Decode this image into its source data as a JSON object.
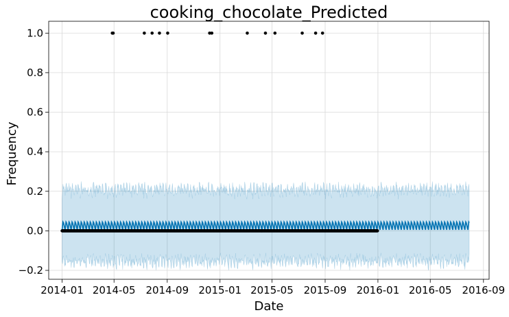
{
  "chart_data": {
    "type": "line",
    "title": "cooking_chocolate_Predicted",
    "xlabel": "Date",
    "ylabel": "Frequency",
    "x_tick_labels": [
      "2014-01",
      "2014-05",
      "2014-09",
      "2015-01",
      "2015-05",
      "2015-09",
      "2016-01",
      "2016-05",
      "2016-09"
    ],
    "y_tick_labels": [
      "−0.2",
      "0.0",
      "0.2",
      "0.4",
      "0.6",
      "0.8",
      "1.0"
    ],
    "xlim": [
      "2013-12-01",
      "2016-09-14"
    ],
    "ylim": [
      -0.245,
      1.06
    ],
    "grid": true,
    "colors": {
      "forecast_line": "#0072B2",
      "uncertainty_band": "#0072B2",
      "observed_points": "#000000",
      "grid": "#d9d9d9"
    },
    "forecast": {
      "start": "2014-01-01",
      "end": "2016-07-30",
      "mean": 0.02,
      "weekly_low": 0.005,
      "weekly_high": 0.045,
      "upper_interval": 0.2,
      "lower_interval": -0.16
    },
    "observed_zero_range": {
      "start": "2014-01-01",
      "end": "2015-12-31",
      "value": 0.0
    },
    "observed_spikes": [
      {
        "date": "2014-04-27",
        "value": 1.0
      },
      {
        "date": "2014-04-29",
        "value": 1.0
      },
      {
        "date": "2014-07-10",
        "value": 1.0
      },
      {
        "date": "2014-07-28",
        "value": 1.0
      },
      {
        "date": "2014-08-14",
        "value": 1.0
      },
      {
        "date": "2014-09-02",
        "value": 1.0
      },
      {
        "date": "2014-12-08",
        "value": 1.0
      },
      {
        "date": "2014-12-13",
        "value": 1.0
      },
      {
        "date": "2015-03-05",
        "value": 1.0
      },
      {
        "date": "2015-04-16",
        "value": 1.0
      },
      {
        "date": "2015-05-08",
        "value": 1.0
      },
      {
        "date": "2015-07-10",
        "value": 1.0
      },
      {
        "date": "2015-08-10",
        "value": 1.0
      },
      {
        "date": "2015-08-26",
        "value": 1.0
      }
    ]
  }
}
